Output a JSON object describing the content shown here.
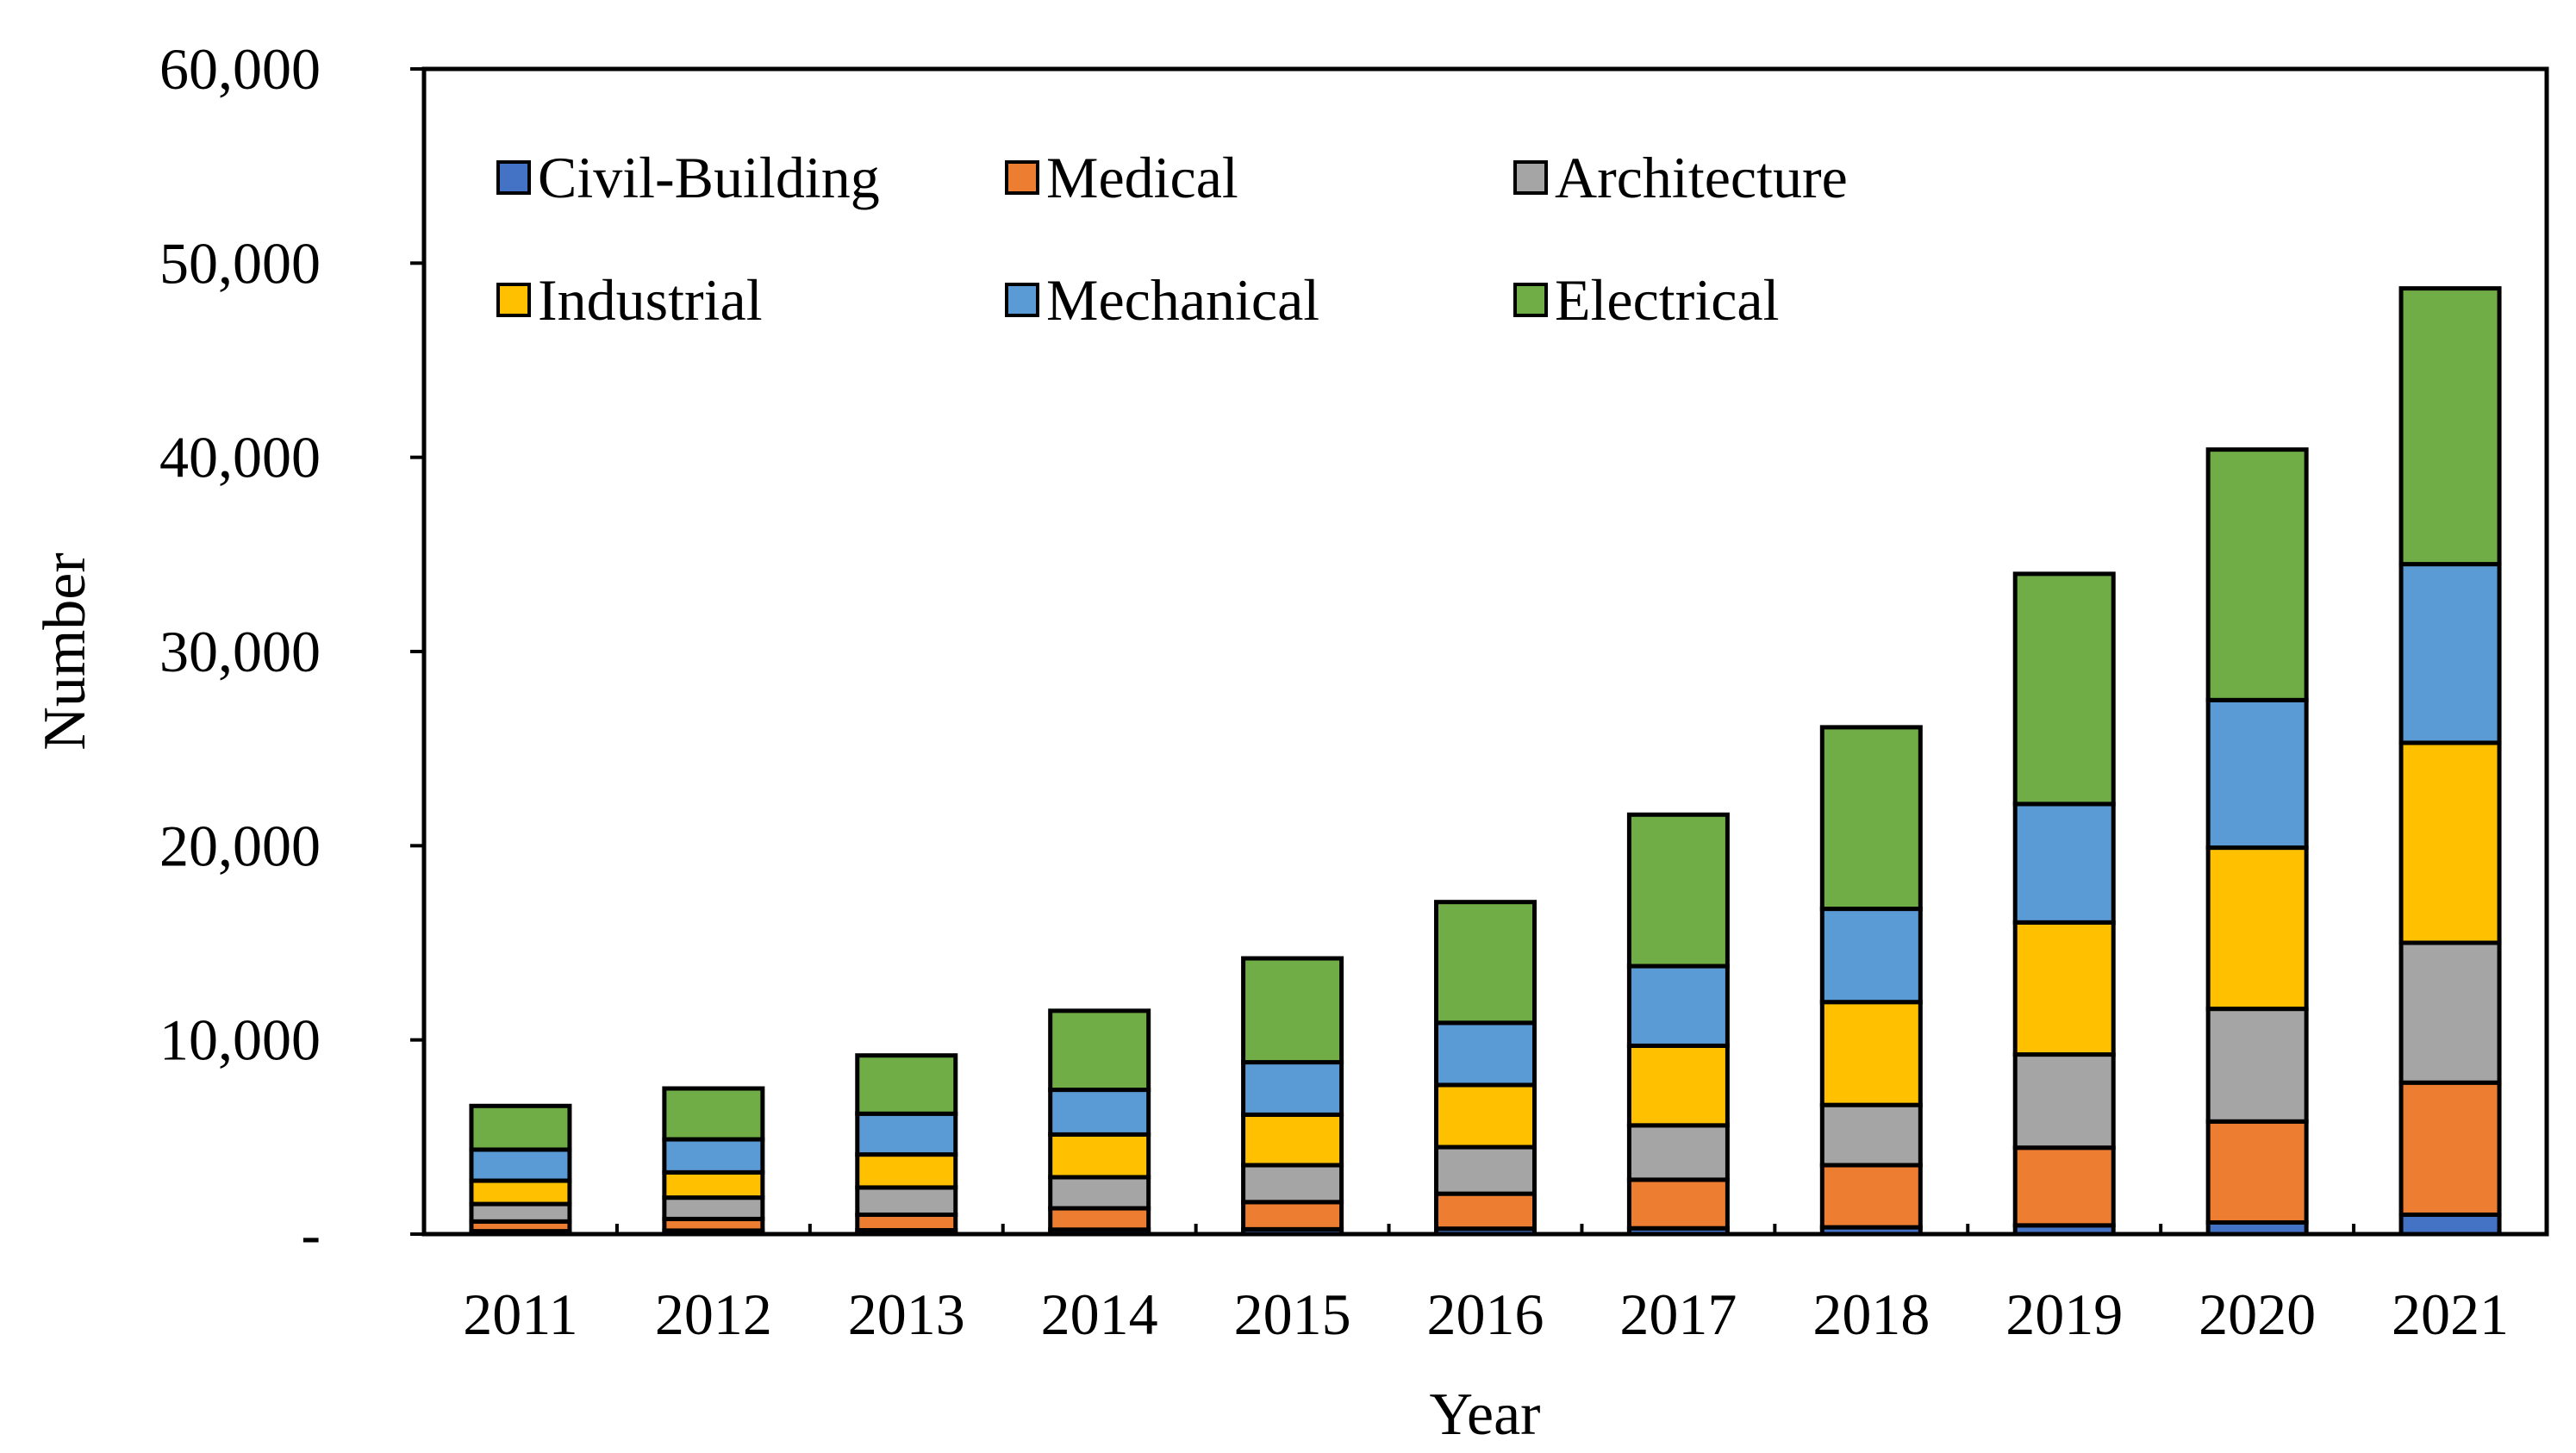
{
  "chart_data": {
    "type": "bar",
    "stacked": true,
    "xlabel": "Year",
    "ylabel": "Number",
    "ylim": [
      0,
      60000
    ],
    "y_ticks": [
      0,
      10000,
      20000,
      30000,
      40000,
      50000,
      60000
    ],
    "y_tick_labels": [
      "-",
      "10,000",
      "20,000",
      "30,000",
      "40,000",
      "50,000",
      "60,000"
    ],
    "categories": [
      "2011",
      "2012",
      "2013",
      "2014",
      "2015",
      "2016",
      "2017",
      "2018",
      "2019",
      "2020",
      "2021"
    ],
    "series": [
      {
        "name": "Civil-Building",
        "color": "#4472C4",
        "values": [
          150,
          180,
          200,
          230,
          250,
          280,
          300,
          350,
          450,
          600,
          1000
        ]
      },
      {
        "name": "Medical",
        "color": "#ED7D31",
        "values": [
          500,
          600,
          800,
          1100,
          1400,
          1800,
          2500,
          3200,
          4000,
          5200,
          6800
        ]
      },
      {
        "name": "Architecture",
        "color": "#A5A5A5",
        "values": [
          900,
          1100,
          1400,
          1600,
          1900,
          2400,
          2800,
          3100,
          4800,
          5800,
          7200
        ]
      },
      {
        "name": "Industrial",
        "color": "#FFC000",
        "values": [
          1200,
          1300,
          1700,
          2200,
          2600,
          3200,
          4100,
          5300,
          6800,
          8300,
          10300
        ]
      },
      {
        "name": "Mechanical",
        "color": "#5B9BD5",
        "values": [
          1600,
          1700,
          2100,
          2300,
          2700,
          3200,
          4100,
          4800,
          6100,
          7600,
          9200
        ]
      },
      {
        "name": "Electrical",
        "color": "#70AD47",
        "values": [
          2250,
          2620,
          3000,
          4070,
          5350,
          6220,
          7800,
          9350,
          11850,
          12900,
          14200
        ]
      }
    ],
    "legend_position": "top-left inside plot",
    "grid": false
  }
}
